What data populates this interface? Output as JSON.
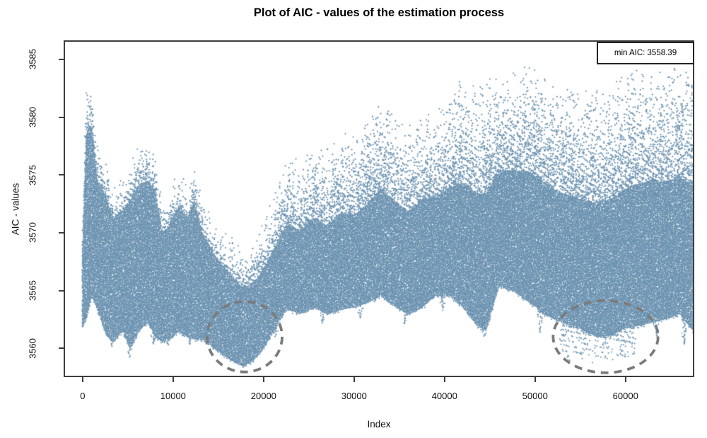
{
  "title": "Plot of AIC - values of the estimation process",
  "legend": {
    "text": "min AIC: 3558.39"
  },
  "chart_data": {
    "type": "scatter",
    "title": "Plot of AIC - values of the estimation process",
    "xlabel": "Index",
    "ylabel": "AIC - values",
    "x_ticks": [
      0,
      10000,
      20000,
      30000,
      40000,
      50000,
      60000
    ],
    "y_ticks": [
      3560,
      3565,
      3570,
      3575,
      3580,
      3585
    ],
    "xlim": [
      -2100,
      67600
    ],
    "ylim": [
      3557.5,
      3586.65
    ],
    "n_points_approx": 65000,
    "min_aic": 3558.39,
    "grid": false,
    "legend_position": "top-right",
    "point_color": "#6b92b0",
    "box_color": "#3d3d3d",
    "annotation_color": "#7b7b7b",
    "envelope": [
      {
        "i": 0,
        "t": 3571.0,
        "b": 3562.0
      },
      {
        "i": 400,
        "t": 3583.2,
        "b": 3562.5
      },
      {
        "i": 1000,
        "t": 3583.0,
        "b": 3564.5
      },
      {
        "i": 1600,
        "t": 3577.5,
        "b": 3563.5
      },
      {
        "i": 2600,
        "t": 3576.0,
        "b": 3561.2
      },
      {
        "i": 3400,
        "t": 3574.0,
        "b": 3560.6
      },
      {
        "i": 4400,
        "t": 3574.5,
        "b": 3561.5
      },
      {
        "i": 5300,
        "t": 3576.0,
        "b": 3560.0
      },
      {
        "i": 6200,
        "t": 3577.3,
        "b": 3561.5
      },
      {
        "i": 7200,
        "t": 3577.6,
        "b": 3562.3
      },
      {
        "i": 8000,
        "t": 3576.8,
        "b": 3561.0
      },
      {
        "i": 8800,
        "t": 3572.3,
        "b": 3560.6
      },
      {
        "i": 9600,
        "t": 3573.2,
        "b": 3560.8
      },
      {
        "i": 10600,
        "t": 3575.0,
        "b": 3561.5
      },
      {
        "i": 11600,
        "t": 3573.8,
        "b": 3561.0
      },
      {
        "i": 12300,
        "t": 3575.6,
        "b": 3560.8
      },
      {
        "i": 13200,
        "t": 3572.6,
        "b": 3560.8
      },
      {
        "i": 14200,
        "t": 3571.0,
        "b": 3560.2
      },
      {
        "i": 15300,
        "t": 3570.0,
        "b": 3559.6
      },
      {
        "i": 16400,
        "t": 3569.3,
        "b": 3559.0
      },
      {
        "i": 17600,
        "t": 3568.4,
        "b": 3558.5
      },
      {
        "i": 18600,
        "t": 3569.0,
        "b": 3558.8
      },
      {
        "i": 19600,
        "t": 3570.2,
        "b": 3559.6
      },
      {
        "i": 20600,
        "t": 3572.2,
        "b": 3560.8
      },
      {
        "i": 21600,
        "t": 3574.2,
        "b": 3562.2
      },
      {
        "i": 22600,
        "t": 3576.6,
        "b": 3563.4
      },
      {
        "i": 24000,
        "t": 3576.0,
        "b": 3563.0
      },
      {
        "i": 25600,
        "t": 3577.6,
        "b": 3563.6
      },
      {
        "i": 27000,
        "t": 3577.0,
        "b": 3563.0
      },
      {
        "i": 28600,
        "t": 3578.6,
        "b": 3563.4
      },
      {
        "i": 30000,
        "t": 3578.0,
        "b": 3563.6
      },
      {
        "i": 31600,
        "t": 3579.6,
        "b": 3564.0
      },
      {
        "i": 33000,
        "t": 3581.4,
        "b": 3564.6
      },
      {
        "i": 34600,
        "t": 3580.0,
        "b": 3563.6
      },
      {
        "i": 36000,
        "t": 3579.0,
        "b": 3563.0
      },
      {
        "i": 37600,
        "t": 3580.6,
        "b": 3563.6
      },
      {
        "i": 39000,
        "t": 3580.0,
        "b": 3564.6
      },
      {
        "i": 40600,
        "t": 3581.6,
        "b": 3564.6
      },
      {
        "i": 42000,
        "t": 3583.0,
        "b": 3563.6
      },
      {
        "i": 43600,
        "t": 3582.6,
        "b": 3562.0
      },
      {
        "i": 44600,
        "t": 3583.0,
        "b": 3561.6
      },
      {
        "i": 46000,
        "t": 3583.6,
        "b": 3565.4
      },
      {
        "i": 47600,
        "t": 3583.8,
        "b": 3565.0
      },
      {
        "i": 49400,
        "t": 3584.6,
        "b": 3564.0
      },
      {
        "i": 51000,
        "t": 3583.6,
        "b": 3563.0
      },
      {
        "i": 52600,
        "t": 3582.6,
        "b": 3562.4
      },
      {
        "i": 54000,
        "t": 3582.3,
        "b": 3562.0
      },
      {
        "i": 55600,
        "t": 3582.0,
        "b": 3561.5
      },
      {
        "i": 57000,
        "t": 3582.0,
        "b": 3561.0
      },
      {
        "i": 58600,
        "t": 3582.6,
        "b": 3561.2
      },
      {
        "i": 60000,
        "t": 3583.6,
        "b": 3561.8
      },
      {
        "i": 61600,
        "t": 3584.3,
        "b": 3562.0
      },
      {
        "i": 63000,
        "t": 3584.5,
        "b": 3562.3
      },
      {
        "i": 64600,
        "t": 3584.0,
        "b": 3562.6
      },
      {
        "i": 66000,
        "t": 3584.5,
        "b": 3563.0
      },
      {
        "i": 67500,
        "t": 3584.3,
        "b": 3561.5
      }
    ],
    "bottom_spikes": [
      {
        "i": 3300,
        "v": 3560.2
      },
      {
        "i": 5200,
        "v": 3559.2
      },
      {
        "i": 7800,
        "v": 3560.4
      },
      {
        "i": 9400,
        "v": 3560.2
      },
      {
        "i": 11900,
        "v": 3560.3
      },
      {
        "i": 14600,
        "v": 3559.9
      },
      {
        "i": 17900,
        "v": 3558.45
      },
      {
        "i": 21300,
        "v": 3561.0
      },
      {
        "i": 26500,
        "v": 3562.2
      },
      {
        "i": 30700,
        "v": 3562.6
      },
      {
        "i": 35600,
        "v": 3562.1
      },
      {
        "i": 39800,
        "v": 3563.3
      },
      {
        "i": 44400,
        "v": 3560.9
      },
      {
        "i": 50600,
        "v": 3561.4
      },
      {
        "i": 63500,
        "v": 3560.9
      },
      {
        "i": 66500,
        "v": 3560.3
      }
    ],
    "sparse_bottom_cluster": {
      "i0": 52800,
      "i1": 61200,
      "v_floor": 3558.85
    },
    "annotations": {
      "ellipses": [
        {
          "cx": 17900,
          "cy": 3561.0,
          "rx": 4150,
          "ry": 3.05
        },
        {
          "cx": 57800,
          "cy": 3561.0,
          "rx": 5800,
          "ry": 3.12
        }
      ]
    },
    "render": {
      "seed": 42,
      "core_step": 1.7,
      "core_density": 0.93,
      "sparse_frac_left": 0.2,
      "sparse_frac_right": 0.45,
      "sparse_ramp": [
        13000,
        23000
      ],
      "column_step": 1.2
    }
  }
}
